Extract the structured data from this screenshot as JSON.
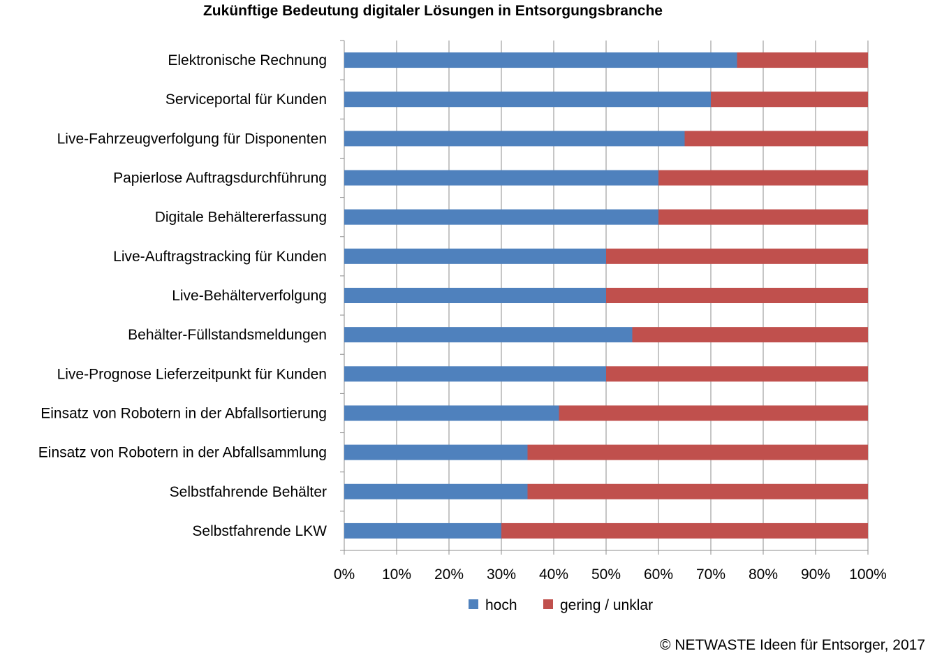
{
  "chart_data": {
    "type": "bar",
    "orientation": "horizontal",
    "stacked": true,
    "title": "Zukünftige Bedeutung digitaler Lösungen in Entsorgungsbranche",
    "categories": [
      "Elektronische Rechnung",
      "Serviceportal für Kunden",
      "Live-Fahrzeugverfolgung für Disponenten",
      "Papierlose Auftragsdurchführung",
      "Digitale Behältererfassung",
      "Live-Auftragstracking für Kunden",
      "Live-Behälterverfolgung",
      "Behälter-Füllstandsmeldungen",
      "Live-Prognose Lieferzeitpunkt für Kunden",
      "Einsatz von Robotern in der Abfallsortierung",
      "Einsatz von Robotern in der Abfallsammlung",
      "Selbstfahrende Behälter",
      "Selbstfahrende LKW"
    ],
    "series": [
      {
        "name": "hoch",
        "color": "#4f81bd",
        "values": [
          75,
          70,
          65,
          60,
          60,
          50,
          50,
          55,
          50,
          41,
          35,
          35,
          30
        ]
      },
      {
        "name": "gering / unklar",
        "color": "#c0504d",
        "values": [
          25,
          30,
          35,
          40,
          40,
          50,
          50,
          45,
          50,
          59,
          65,
          65,
          70
        ]
      }
    ],
    "xlim": [
      0,
      100
    ],
    "x_ticks": [
      "0%",
      "10%",
      "20%",
      "30%",
      "40%",
      "50%",
      "60%",
      "70%",
      "80%",
      "90%",
      "100%"
    ],
    "grid": "vertical",
    "legend_position": "bottom"
  },
  "footer": {
    "copyright": "© NETWASTE Ideen für Entsorger, 2017"
  }
}
